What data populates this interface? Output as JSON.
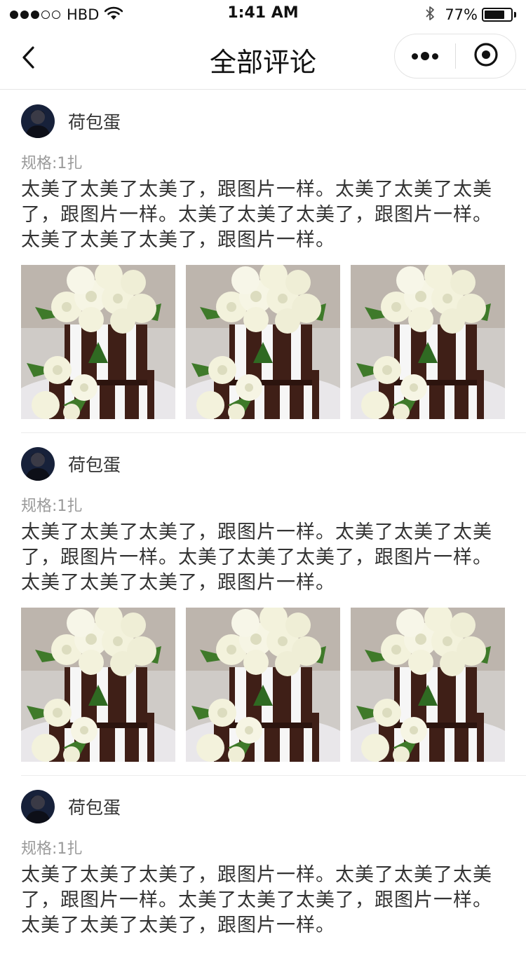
{
  "status_bar": {
    "carrier": "HBD",
    "signal_bars_filled": 3,
    "signal_bars_total": 5,
    "time": "1:41 AM",
    "battery_percent": "77%",
    "battery_level": 0.77
  },
  "nav": {
    "title": "全部评论",
    "back_icon": "chevron-left-icon",
    "more_icon": "more-dots-icon",
    "close_icon": "target-circle-icon"
  },
  "comments": [
    {
      "user_name": "荷包蛋",
      "spec_label": "规格:",
      "spec_value": "1扎",
      "content": "太美了太美了太美了，跟图片一样。太美了太美了太美了，跟图片一样。太美了太美了太美了，跟图片一样。太美了太美了太美了，跟图片一样。",
      "photos": [
        "cake-photo",
        "cake-photo",
        "cake-photo"
      ]
    },
    {
      "user_name": "荷包蛋",
      "spec_label": "规格:",
      "spec_value": "1扎",
      "content": "太美了太美了太美了，跟图片一样。太美了太美了太美了，跟图片一样。太美了太美了太美了，跟图片一样。太美了太美了太美了，跟图片一样。",
      "photos": [
        "cake-photo",
        "cake-photo",
        "cake-photo"
      ]
    },
    {
      "user_name": "荷包蛋",
      "spec_label": "规格:",
      "spec_value": "1扎",
      "content": "太美了太美了太美了，跟图片一样。太美了太美了太美了，跟图片一样。太美了太美了太美了，跟图片一样。太美了太美了太美了，跟图片一样。"
    }
  ],
  "colors": {
    "text_primary": "#333333",
    "text_secondary": "#9a9a9a",
    "divider": "#ececec",
    "cake_brown": "#3f1f17",
    "rose_white": "#f3f2dc",
    "leaf_green": "#3f7a2a"
  }
}
